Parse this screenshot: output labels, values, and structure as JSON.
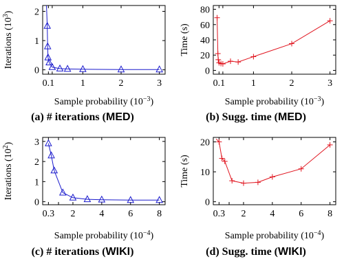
{
  "chart_data": [
    {
      "id": "a",
      "type": "line",
      "caption_prefix": "(a) # iterations (",
      "caption_highlight": "MED",
      "caption_suffix": ")",
      "ylabel_base": "Iterations (10",
      "ylabel_exp": "3",
      "ylabel_end": ")",
      "xlabel_base": "Sample probability (10",
      "xlabel_exp": "−3",
      "xlabel_end": ")",
      "color": "#1a1acc",
      "marker": "triangle",
      "xlim": [
        -0.05,
        3.15
      ],
      "ylim": [
        -0.15,
        2.2
      ],
      "xticks": [
        0.1,
        1,
        2,
        3
      ],
      "xtick_labels": [
        "0.1",
        "1",
        "2",
        "3"
      ],
      "xminor": [
        0.2
      ],
      "yticks": [
        0,
        1,
        2
      ],
      "ytick_labels": [
        "0",
        "1",
        "2"
      ],
      "points": [
        [
          0.05,
          2.2
        ],
        [
          0.07,
          1.5
        ],
        [
          0.08,
          0.8
        ],
        [
          0.09,
          0.42
        ],
        [
          0.12,
          0.25
        ],
        [
          0.2,
          0.09
        ],
        [
          0.4,
          0.04
        ],
        [
          0.6,
          0.03
        ],
        [
          1.0,
          0.02
        ],
        [
          2.0,
          0.01
        ],
        [
          3.0,
          0.01
        ]
      ],
      "markers": [
        [
          0.07,
          1.5
        ],
        [
          0.08,
          0.8
        ],
        [
          0.09,
          0.42
        ],
        [
          0.12,
          0.25
        ],
        [
          0.2,
          0.09
        ],
        [
          0.4,
          0.04
        ],
        [
          0.6,
          0.03
        ],
        [
          1.0,
          0.02
        ],
        [
          2.0,
          0.01
        ],
        [
          3.0,
          0.01
        ]
      ]
    },
    {
      "id": "b",
      "type": "line",
      "caption_prefix": "(b) Sugg. time (",
      "caption_highlight": "MED",
      "caption_suffix": ")",
      "ylabel_base": "Time (s)",
      "ylabel_exp": "",
      "ylabel_end": "",
      "xlabel_base": "Sample probability (10",
      "xlabel_exp": "−3",
      "xlabel_end": ")",
      "color": "#e0141e",
      "marker": "plus",
      "xlim": [
        -0.05,
        3.15
      ],
      "ylim": [
        -5,
        85
      ],
      "xticks": [
        0.1,
        1,
        2,
        3
      ],
      "xtick_labels": [
        "0.1",
        "1",
        "2",
        "3"
      ],
      "xminor": [
        0.2
      ],
      "yticks": [
        0,
        20,
        40,
        60,
        80
      ],
      "ytick_labels": [
        "0",
        "20",
        "40",
        "60",
        "80"
      ],
      "points": [
        [
          0.05,
          69
        ],
        [
          0.07,
          22
        ],
        [
          0.08,
          14
        ],
        [
          0.1,
          10
        ],
        [
          0.15,
          9
        ],
        [
          0.2,
          8.5
        ],
        [
          0.4,
          12
        ],
        [
          0.6,
          11
        ],
        [
          1.0,
          18
        ],
        [
          2.0,
          35
        ],
        [
          3.0,
          65
        ]
      ],
      "markers": [
        [
          0.05,
          69
        ],
        [
          0.07,
          22
        ],
        [
          0.08,
          14
        ],
        [
          0.1,
          10
        ],
        [
          0.15,
          9
        ],
        [
          0.2,
          8.5
        ],
        [
          0.4,
          12
        ],
        [
          0.6,
          11
        ],
        [
          1.0,
          18
        ],
        [
          2.0,
          35
        ],
        [
          3.0,
          65
        ]
      ]
    },
    {
      "id": "c",
      "type": "line",
      "caption_prefix": "(c) # iterations (",
      "caption_highlight": "WIKI",
      "caption_suffix": ")",
      "ylabel_base": "Iterations (10",
      "ylabel_exp": "2",
      "ylabel_end": ")",
      "xlabel_base": "Sample probability (10",
      "xlabel_exp": "−4",
      "xlabel_end": ")",
      "color": "#1a1acc",
      "marker": "triangle",
      "xlim": [
        -0.1,
        8.4
      ],
      "ylim": [
        -0.15,
        3.2
      ],
      "xticks": [
        0.3,
        2,
        4,
        6,
        8
      ],
      "xtick_labels": [
        "0.3",
        "2",
        "4",
        "6",
        "8"
      ],
      "xminor": [
        1
      ],
      "yticks": [
        0,
        1,
        2,
        3
      ],
      "ytick_labels": [
        "0",
        "1",
        "2",
        "3"
      ],
      "points": [
        [
          0.3,
          2.9
        ],
        [
          0.5,
          2.3
        ],
        [
          0.7,
          1.55
        ],
        [
          1.3,
          0.45
        ],
        [
          2.0,
          0.2
        ],
        [
          3.0,
          0.12
        ],
        [
          4.0,
          0.1
        ],
        [
          6.0,
          0.08
        ],
        [
          8.0,
          0.08
        ]
      ],
      "markers": [
        [
          0.3,
          2.9
        ],
        [
          0.5,
          2.3
        ],
        [
          0.7,
          1.55
        ],
        [
          1.3,
          0.45
        ],
        [
          2.0,
          0.2
        ],
        [
          3.0,
          0.12
        ],
        [
          4.0,
          0.1
        ],
        [
          6.0,
          0.08
        ],
        [
          8.0,
          0.08
        ]
      ]
    },
    {
      "id": "d",
      "type": "line",
      "caption_prefix": "(d) Sugg. time (",
      "caption_highlight": "WIKI",
      "caption_suffix": ")",
      "ylabel_base": "Time (s)",
      "ylabel_exp": "",
      "ylabel_end": "",
      "xlabel_base": "Sample probability (10",
      "xlabel_exp": "−4",
      "xlabel_end": ")",
      "color": "#e0141e",
      "marker": "plus",
      "xlim": [
        -0.1,
        8.4
      ],
      "ylim": [
        -1,
        21.5
      ],
      "xticks": [
        0.3,
        2,
        4,
        6,
        8
      ],
      "xtick_labels": [
        "0.3",
        "2",
        "4",
        "6",
        "8"
      ],
      "xminor": [
        1
      ],
      "yticks": [
        0,
        10,
        20
      ],
      "ytick_labels": [
        "0",
        "10",
        "20"
      ],
      "points": [
        [
          0.1,
          21
        ],
        [
          0.3,
          20
        ],
        [
          0.5,
          14.5
        ],
        [
          0.7,
          13.5
        ],
        [
          1.2,
          7
        ],
        [
          2.0,
          6.2
        ],
        [
          3.0,
          6.5
        ],
        [
          4.0,
          8.3
        ],
        [
          6.0,
          11
        ],
        [
          8.0,
          19
        ]
      ],
      "markers": [
        [
          0.3,
          20
        ],
        [
          0.5,
          14.5
        ],
        [
          0.7,
          13.5
        ],
        [
          1.2,
          7
        ],
        [
          2.0,
          6.2
        ],
        [
          3.0,
          6.5
        ],
        [
          4.0,
          8.3
        ],
        [
          6.0,
          11
        ],
        [
          8.0,
          19
        ]
      ]
    }
  ]
}
